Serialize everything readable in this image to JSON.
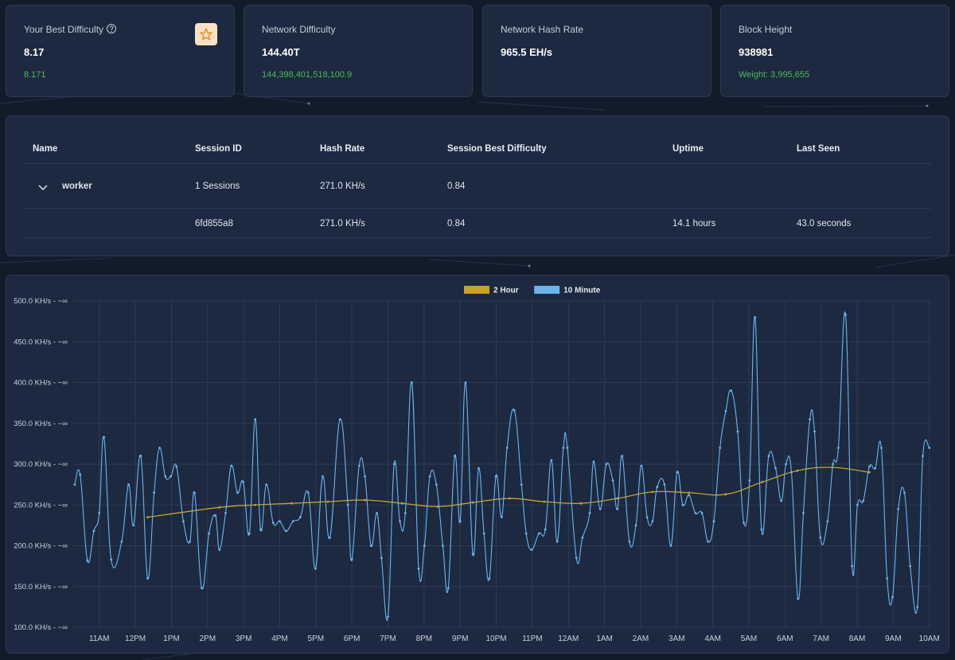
{
  "cards": [
    {
      "title": "Your Best Difficulty",
      "value": "8.17",
      "sub": "8.171"
    },
    {
      "title": "Network Difficulty",
      "value": "144.40T",
      "sub": "144,398,401,518,100.9"
    },
    {
      "title": "Network Hash Rate",
      "value": "965.5 EH/s"
    },
    {
      "title": "Block Height",
      "value": "938981",
      "sub": "Weight: 3,995,655"
    }
  ],
  "table": {
    "headers": [
      "Name",
      "Session ID",
      "Hash Rate",
      "Session Best Difficulty",
      "Uptime",
      "Last Seen"
    ],
    "rows": [
      {
        "name": "worker",
        "session_id": "1 Sessions",
        "hash_rate": "271.0 KH/s",
        "best_difficulty": "0.84"
      },
      {
        "session_id": "6fd855a8",
        "hash_rate": "271.0 KH/s",
        "best_difficulty": "0.84",
        "uptime": "14.1 hours",
        "last_seen": "43.0 seconds"
      }
    ]
  },
  "chart_data": {
    "type": "line",
    "grid": true,
    "legend": "top",
    "xlim": [
      10.3,
      34.05
    ],
    "ylim": [
      100,
      500
    ],
    "yticks": [
      {
        "value": 100,
        "label": "100.0 KH/s - ~∞"
      },
      {
        "value": 150,
        "label": "150.0 KH/s - ~∞"
      },
      {
        "value": 200,
        "label": "200.0 KH/s - ~∞"
      },
      {
        "value": 250,
        "label": "250.0 KH/s - ~∞"
      },
      {
        "value": 300,
        "label": "300.0 KH/s - ~∞"
      },
      {
        "value": 350,
        "label": "350.0 KH/s - ~∞"
      },
      {
        "value": 400,
        "label": "400.0 KH/s - ~∞"
      },
      {
        "value": 450,
        "label": "450.0 KH/s - ~∞"
      },
      {
        "value": 500,
        "label": "500.0 KH/s - ~∞"
      }
    ],
    "xticks": [
      {
        "value": 11,
        "label": "11AM"
      },
      {
        "value": 12,
        "label": "12PM"
      },
      {
        "value": 13,
        "label": "1PM"
      },
      {
        "value": 14,
        "label": "2PM"
      },
      {
        "value": 15,
        "label": "3PM"
      },
      {
        "value": 16,
        "label": "4PM"
      },
      {
        "value": 17,
        "label": "5PM"
      },
      {
        "value": 18,
        "label": "6PM"
      },
      {
        "value": 19,
        "label": "7PM"
      },
      {
        "value": 20,
        "label": "8PM"
      },
      {
        "value": 21,
        "label": "9PM"
      },
      {
        "value": 22,
        "label": "10PM"
      },
      {
        "value": 23,
        "label": "11PM"
      },
      {
        "value": 24,
        "label": "12AM"
      },
      {
        "value": 25,
        "label": "1AM"
      },
      {
        "value": 26,
        "label": "2AM"
      },
      {
        "value": 27,
        "label": "3AM"
      },
      {
        "value": 28,
        "label": "4AM"
      },
      {
        "value": 29,
        "label": "5AM"
      },
      {
        "value": 30,
        "label": "6AM"
      },
      {
        "value": 31,
        "label": "7AM"
      },
      {
        "value": 32,
        "label": "8AM"
      },
      {
        "value": 33,
        "label": "9AM"
      },
      {
        "value": 34,
        "label": "10AM"
      }
    ],
    "series": [
      {
        "name": "2 Hour",
        "color": "#c9a227",
        "x": [
          12.34,
          14.33,
          15.32,
          16.33,
          17.34,
          18.36,
          19.39,
          20.38,
          21.35,
          22.37,
          23.33,
          24.35,
          25.36,
          26.33,
          27.34,
          28.36,
          29.37,
          30.34,
          31.31,
          32.34
        ],
        "values": [
          235,
          247,
          250,
          252,
          254,
          256,
          252,
          248,
          253,
          258,
          254,
          252,
          258,
          266,
          265,
          263,
          278,
          292,
          296,
          290
        ]
      },
      {
        "name": "10 Minute",
        "color": "#6cb4ee",
        "x": [
          10.32,
          10.47,
          10.67,
          10.85,
          11.0,
          11.13,
          11.33,
          11.62,
          11.81,
          11.95,
          12.15,
          12.34,
          12.52,
          12.67,
          12.83,
          12.98,
          13.14,
          13.33,
          13.51,
          13.64,
          13.84,
          14.04,
          14.22,
          14.33,
          14.5,
          14.66,
          14.83,
          14.99,
          15.16,
          15.32,
          15.47,
          15.63,
          15.82,
          16.0,
          16.18,
          16.37,
          16.57,
          16.79,
          16.99,
          17.19,
          17.39,
          17.67,
          17.89,
          18.0,
          18.2,
          18.36,
          18.53,
          18.69,
          18.82,
          19.0,
          19.17,
          19.33,
          19.48,
          19.66,
          19.85,
          20.01,
          20.16,
          20.34,
          20.52,
          20.67,
          20.85,
          21.0,
          21.15,
          21.35,
          21.51,
          21.66,
          21.81,
          21.99,
          22.15,
          22.3,
          22.5,
          22.7,
          22.83,
          22.98,
          23.18,
          23.36,
          23.53,
          23.69,
          23.86,
          23.97,
          24.22,
          24.39,
          24.59,
          24.7,
          24.88,
          25.05,
          25.23,
          25.36,
          25.49,
          25.69,
          25.87,
          26.02,
          26.18,
          26.33,
          26.46,
          26.66,
          26.84,
          27.01,
          27.17,
          27.34,
          27.52,
          27.7,
          27.87,
          28.03,
          28.2,
          28.36,
          28.51,
          28.69,
          28.86,
          29.02,
          29.17,
          29.35,
          29.55,
          29.74,
          29.9,
          30.03,
          30.18,
          30.36,
          30.51,
          30.69,
          30.82,
          30.98,
          31.18,
          31.33,
          31.48,
          31.68,
          31.86,
          32.01,
          32.17,
          32.34,
          32.5,
          32.67,
          32.83,
          32.98,
          33.14,
          33.31,
          33.47,
          33.67,
          33.82,
          34.0
        ],
        "values": [
          275,
          287,
          182,
          218,
          240,
          333,
          183,
          205,
          275,
          225,
          310,
          160,
          265,
          320,
          285,
          285,
          297,
          230,
          205,
          265,
          148,
          215,
          237,
          195,
          240,
          298,
          265,
          278,
          215,
          355,
          220,
          275,
          228,
          230,
          218,
          230,
          235,
          265,
          172,
          285,
          210,
          355,
          250,
          183,
          298,
          285,
          200,
          240,
          185,
          113,
          300,
          230,
          240,
          400,
          172,
          200,
          285,
          275,
          200,
          148,
          310,
          230,
          400,
          190,
          295,
          215,
          160,
          285,
          235,
          320,
          366,
          275,
          215,
          195,
          215,
          220,
          305,
          205,
          320,
          320,
          185,
          210,
          240,
          303,
          245,
          300,
          280,
          245,
          310,
          205,
          225,
          298,
          235,
          230,
          272,
          275,
          200,
          290,
          250,
          262,
          240,
          240,
          205,
          230,
          320,
          365,
          390,
          340,
          228,
          280,
          480,
          220,
          310,
          295,
          255,
          300,
          290,
          135,
          240,
          355,
          340,
          210,
          230,
          300,
          320,
          483,
          175,
          250,
          255,
          297,
          295,
          320,
          160,
          137,
          245,
          265,
          175,
          125,
          310,
          320
        ]
      }
    ]
  }
}
